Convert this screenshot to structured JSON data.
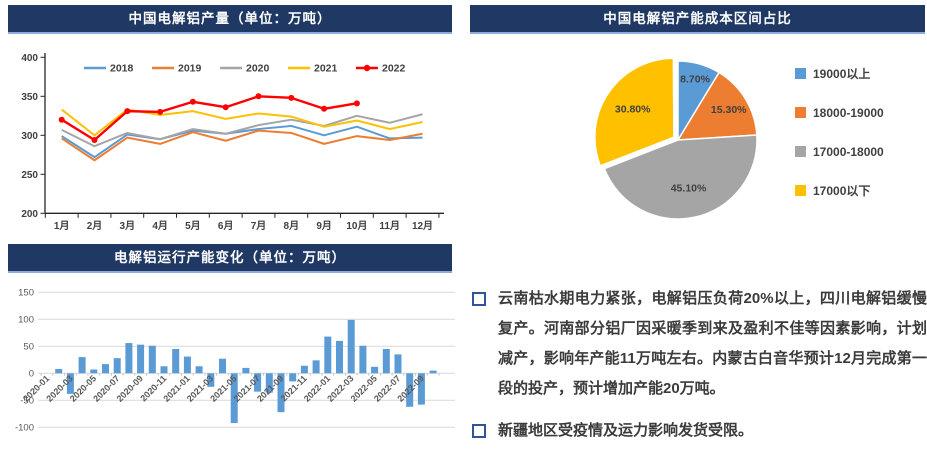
{
  "colors": {
    "header_bg": "#1F3864",
    "header_border": "#8FAADC",
    "bullet_square": "#2F5597",
    "axis_text": "#404040",
    "bar_axis_text": "#595959",
    "grid": "#D9D9D9",
    "axis_line": "#262626"
  },
  "chart_data": [
    {
      "type": "line",
      "title": "中国电解铝产量（单位：万吨）",
      "ylim": [
        200,
        400
      ],
      "yticks": [
        400,
        350,
        300,
        250,
        200
      ],
      "grid": false,
      "legend_position": "top",
      "categories": [
        "1月",
        "2月",
        "3月",
        "4月",
        "5月",
        "6月",
        "7月",
        "8月",
        "9月",
        "10月",
        "11月",
        "12月"
      ],
      "series": [
        {
          "name": "2018",
          "color": "#5B9BD5",
          "marker": false,
          "values": [
            299,
            272,
            301,
            295,
            306,
            302,
            308,
            312,
            300,
            311,
            296,
            297
          ]
        },
        {
          "name": "2019",
          "color": "#ED7D31",
          "marker": false,
          "values": [
            296,
            268,
            297,
            289,
            304,
            293,
            306,
            303,
            289,
            299,
            294,
            302
          ]
        },
        {
          "name": "2020",
          "color": "#A5A5A5",
          "marker": false,
          "values": [
            307,
            286,
            303,
            295,
            308,
            302,
            313,
            320,
            312,
            325,
            316,
            327
          ]
        },
        {
          "name": "2021",
          "color": "#FFC000",
          "marker": false,
          "values": [
            333,
            300,
            333,
            326,
            331,
            321,
            328,
            324,
            311,
            319,
            308,
            317
          ]
        },
        {
          "name": "2022",
          "color": "#FF0000",
          "marker": true,
          "values": [
            320,
            294,
            331,
            330,
            343,
            336,
            350,
            348,
            334,
            341
          ]
        }
      ]
    },
    {
      "type": "pie",
      "title": "中国电解铝产能成本区间占比",
      "legend_position": "right",
      "slices": [
        {
          "label": "19000以上",
          "pct": 8.7,
          "display": "8.70%",
          "color": "#5B9BD5",
          "exploded": false
        },
        {
          "label": "18000-19000",
          "pct": 15.3,
          "display": "15.30%",
          "color": "#ED7D31",
          "exploded": false
        },
        {
          "label": "17000-18000",
          "pct": 45.1,
          "display": "45.10%",
          "color": "#A5A5A5",
          "exploded": false
        },
        {
          "label": "17000以下",
          "pct": 30.8,
          "display": "30.80%",
          "color": "#FFC000",
          "exploded": true
        }
      ]
    },
    {
      "type": "bar",
      "title": "电解铝运行产能变化（单位：万吨）",
      "bar_color": "#5B9BD5",
      "ylim": [
        -100,
        150
      ],
      "yticks": [
        150,
        100,
        50,
        0,
        -50,
        -100
      ],
      "grid": true,
      "categories": [
        "2020-01",
        "2020-02",
        "2020-03",
        "2020-04",
        "2020-05",
        "2020-06",
        "2020-07",
        "2020-08",
        "2020-09",
        "2020-10",
        "2020-11",
        "2020-12",
        "2021-01",
        "2021-02",
        "2021-03",
        "2021-04",
        "2021-05",
        "2021-06",
        "2021-07",
        "2021-08",
        "2021-09",
        "2021-10",
        "2021-11",
        "2021-12",
        "2022-01",
        "2022-02",
        "2022-03",
        "2022-04",
        "2022-05",
        "2022-06",
        "2022-07",
        "2022-08",
        "2022-09",
        "2022-10"
      ],
      "values": [
        0,
        8,
        -38,
        30,
        7,
        17,
        28,
        56,
        53,
        51,
        13,
        45,
        31,
        13,
        -25,
        27,
        -92,
        10,
        -34,
        -36,
        -72,
        -15,
        14,
        24,
        68,
        60,
        99,
        51,
        12,
        45,
        35,
        -62,
        -58,
        5
      ],
      "x_tick_labels": [
        "2020-01",
        "2020-03",
        "2020-05",
        "2020-07",
        "2020-09",
        "2020-11",
        "2021-01",
        "2021-03",
        "2021-05",
        "2021-07",
        "2021-09",
        "2021-11",
        "2022-01",
        "2022-03",
        "2022-05",
        "2022-07",
        "2022-09"
      ]
    }
  ],
  "notes": {
    "items": [
      "云南枯水期电力紧张，电解铝压负荷20%以上，四川电解铝缓慢复产。河南部分铝厂因采暖季到来及盈利不佳等因素影响，计划减产，影响年产能11万吨左右。内蒙古白音华预计12月完成第一段的投产，预计增加产能20万吨。",
      "新疆地区受疫情及运力影响发货受限。"
    ]
  }
}
